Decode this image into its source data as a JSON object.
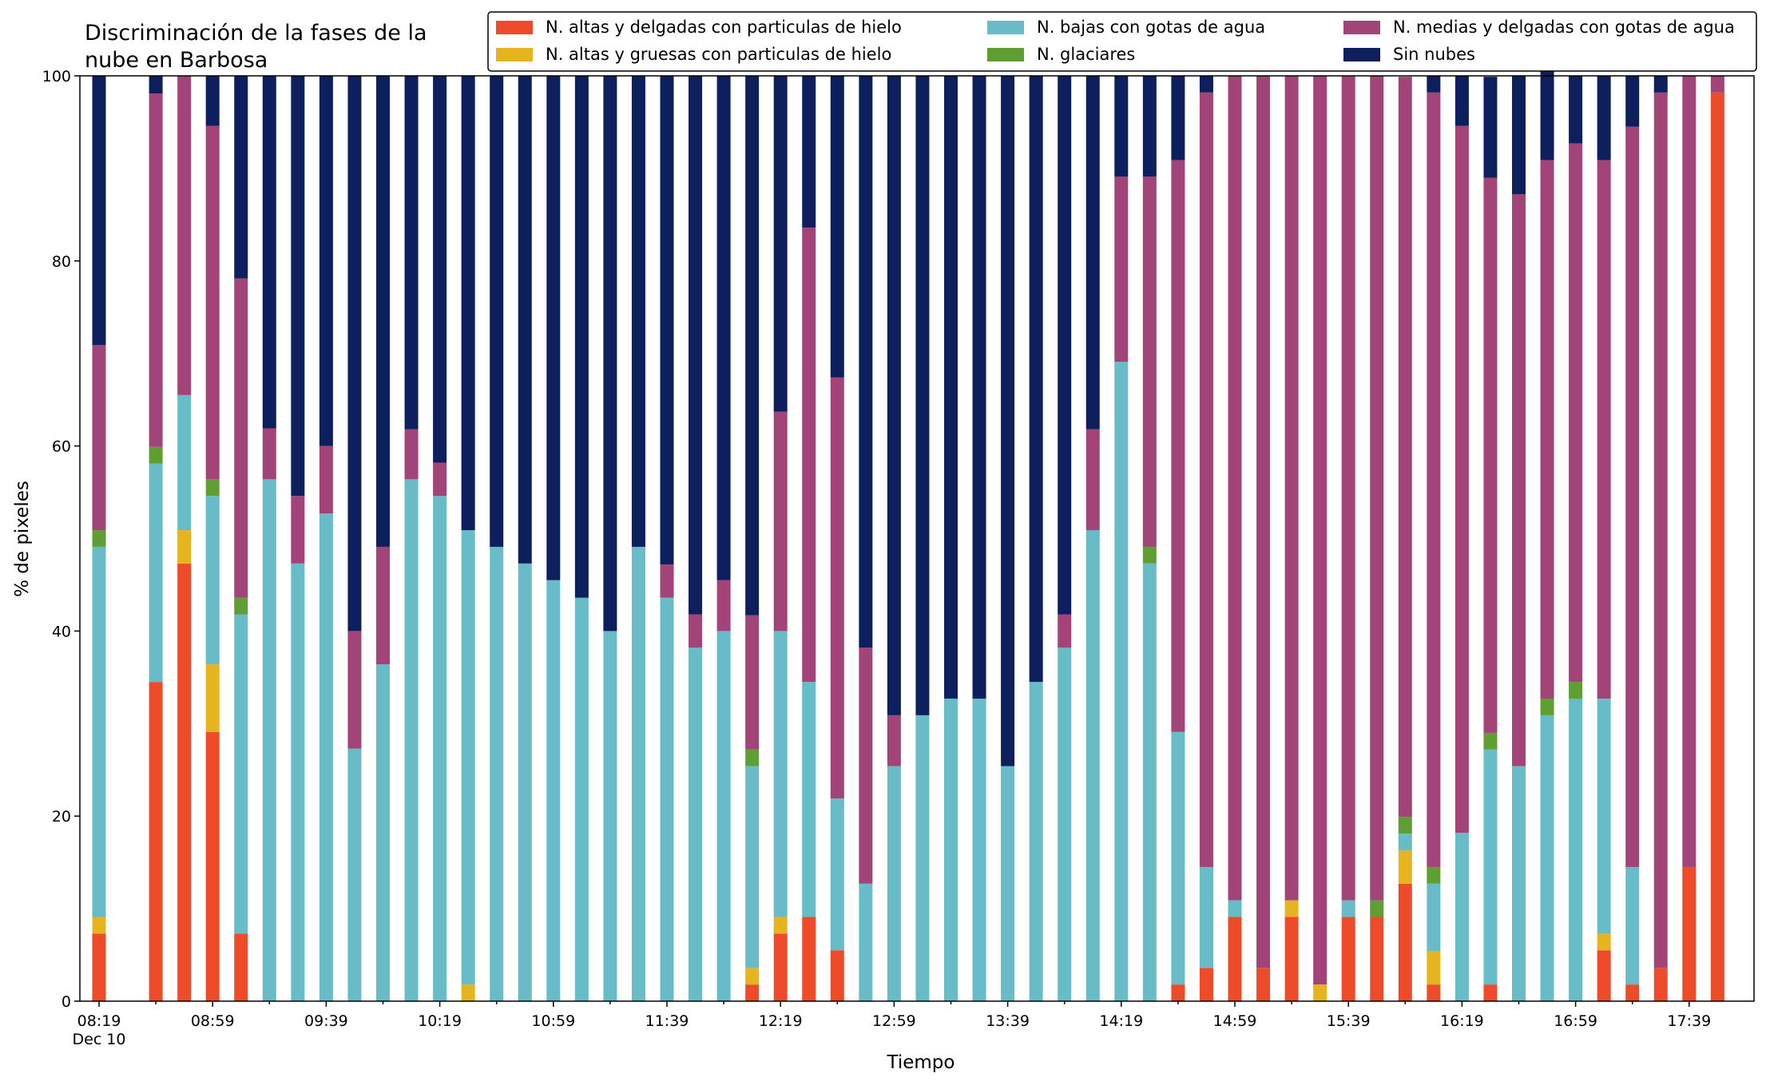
{
  "chart_data": {
    "type": "bar",
    "stacked": true,
    "title_lines": [
      "Discriminación de la fases de la",
      "nube en Barbosa"
    ],
    "xlabel": "Tiempo",
    "ylabel": "% de pixeles",
    "ylim": [
      0,
      100
    ],
    "yticks": [
      0,
      20,
      40,
      60,
      80,
      100
    ],
    "grid": false,
    "legend_position": "top-right",
    "x_tick_labels": [
      "08:19",
      "08:59",
      "09:39",
      "10:19",
      "10:59",
      "11:39",
      "12:19",
      "12:59",
      "13:39",
      "14:19",
      "14:59",
      "15:39",
      "16:19",
      "16:59",
      "17:39"
    ],
    "x_date_label": "Dec 10",
    "x_start": "08:19",
    "x_step_minutes": 10,
    "x": [
      "08:19",
      "08:29",
      "08:39",
      "08:49",
      "08:59",
      "09:09",
      "09:19",
      "09:29",
      "09:39",
      "09:49",
      "09:59",
      "10:09",
      "10:19",
      "10:29",
      "10:39",
      "10:49",
      "10:59",
      "11:09",
      "11:19",
      "11:29",
      "11:39",
      "11:49",
      "11:59",
      "12:09",
      "12:19",
      "12:29",
      "12:39",
      "12:49",
      "12:59",
      "13:09",
      "13:19",
      "13:29",
      "13:39",
      "13:49",
      "13:59",
      "14:09",
      "14:19",
      "14:29",
      "14:39",
      "14:49",
      "14:59",
      "15:09",
      "15:19",
      "15:29",
      "15:39",
      "15:49",
      "15:59",
      "16:09",
      "16:19",
      "16:29",
      "16:39",
      "16:49",
      "16:59",
      "17:09",
      "17:19",
      "17:29",
      "17:39",
      "17:49"
    ],
    "series": [
      {
        "name": "N. altas y delgadas con particulas de hielo",
        "color": "#EE4B2B",
        "values": [
          7.3,
          null,
          34.5,
          47.3,
          29.1,
          7.3,
          0,
          0,
          0,
          0,
          0,
          0,
          0,
          0,
          0,
          0,
          0,
          0,
          0,
          0,
          0,
          0,
          0,
          1.8,
          7.3,
          9.1,
          5.5,
          0,
          0,
          0,
          0,
          0,
          0,
          0,
          0,
          0,
          0,
          0,
          1.8,
          3.6,
          9.1,
          3.6,
          9.1,
          0,
          9.1,
          9.1,
          12.7,
          1.8,
          0,
          1.8,
          0,
          0,
          0,
          5.5,
          1.8,
          3.6,
          14.5,
          98.2
        ]
      },
      {
        "name": "N. altas y gruesas con particulas de hielo",
        "color": "#E6B41E",
        "values": [
          1.8,
          null,
          0,
          3.6,
          7.3,
          0,
          0,
          0,
          0,
          0,
          0,
          0,
          0,
          1.8,
          0,
          0,
          0,
          0,
          0,
          0,
          0,
          0,
          0,
          1.8,
          1.8,
          0,
          0,
          0,
          0,
          0,
          0,
          0,
          0,
          0,
          0,
          0,
          0,
          0,
          0,
          0,
          0,
          0,
          1.8,
          1.8,
          0,
          0,
          3.6,
          3.6,
          0,
          0,
          0,
          0,
          0,
          1.8,
          0,
          0,
          0,
          0
        ]
      },
      {
        "name": "N. bajas con gotas de agua",
        "color": "#67BCC8",
        "values": [
          40.0,
          null,
          23.6,
          14.6,
          18.2,
          34.5,
          56.4,
          47.3,
          52.7,
          27.3,
          36.4,
          56.4,
          54.6,
          49.1,
          49.1,
          47.3,
          45.5,
          43.6,
          40.0,
          49.1,
          43.6,
          38.2,
          40.0,
          21.8,
          30.9,
          25.4,
          16.4,
          12.7,
          25.4,
          30.9,
          32.7,
          32.7,
          25.4,
          34.5,
          38.2,
          50.9,
          69.1,
          47.3,
          27.3,
          10.9,
          1.8,
          0,
          0,
          0,
          1.8,
          0,
          1.8,
          7.3,
          18.2,
          25.4,
          25.4,
          30.9,
          32.7,
          25.4,
          12.7,
          0,
          0,
          0
        ]
      },
      {
        "name": "N. glaciares",
        "color": "#5E9E33",
        "values": [
          1.8,
          null,
          1.8,
          0,
          1.8,
          1.8,
          0,
          0,
          0,
          0,
          0,
          0,
          0,
          0,
          0,
          0,
          0,
          0,
          0,
          0,
          0,
          0,
          0,
          1.8,
          0,
          0,
          0,
          0,
          0,
          0,
          0,
          0,
          0,
          0,
          0,
          0,
          0,
          1.8,
          0,
          0,
          0,
          0,
          0,
          0,
          0,
          1.8,
          1.8,
          1.8,
          0,
          1.8,
          0,
          1.8,
          1.8,
          0,
          0,
          0,
          0,
          0
        ]
      },
      {
        "name": "N. medias y delgadas con gotas de agua",
        "color": "#A24477",
        "values": [
          20.0,
          null,
          38.2,
          34.5,
          38.2,
          34.5,
          5.5,
          7.3,
          7.3,
          12.7,
          12.7,
          5.4,
          3.6,
          0,
          0,
          0,
          0,
          0,
          0,
          0,
          3.6,
          3.6,
          5.5,
          14.5,
          23.7,
          49.1,
          45.5,
          25.5,
          5.5,
          0,
          0,
          0,
          0,
          0,
          3.6,
          10.9,
          20.0,
          40.0,
          61.8,
          83.7,
          89.1,
          96.4,
          89.1,
          98.2,
          89.1,
          89.1,
          80.0,
          83.7,
          76.4,
          60.0,
          61.8,
          58.2,
          58.2,
          58.2,
          80.0,
          94.6,
          85.5,
          1.8
        ]
      },
      {
        "name": "Sin nubes",
        "color": "#0D1F5C",
        "values": [
          29.1,
          null,
          1.9,
          0,
          5.4,
          21.9,
          38.1,
          45.4,
          40.0,
          60.0,
          50.9,
          38.2,
          41.8,
          49.1,
          50.9,
          52.7,
          54.5,
          56.4,
          60.0,
          50.9,
          52.8,
          58.2,
          54.5,
          58.3,
          36.3,
          16.4,
          32.6,
          61.8,
          69.1,
          69.1,
          67.3,
          67.3,
          74.6,
          65.5,
          58.2,
          38.2,
          10.9,
          10.9,
          9.1,
          1.8,
          0,
          0,
          0,
          0,
          0,
          0,
          0,
          1.8,
          5.4,
          10.9,
          12.8,
          10.9,
          7.3,
          9.1,
          5.5,
          1.8,
          0,
          0
        ]
      }
    ]
  }
}
